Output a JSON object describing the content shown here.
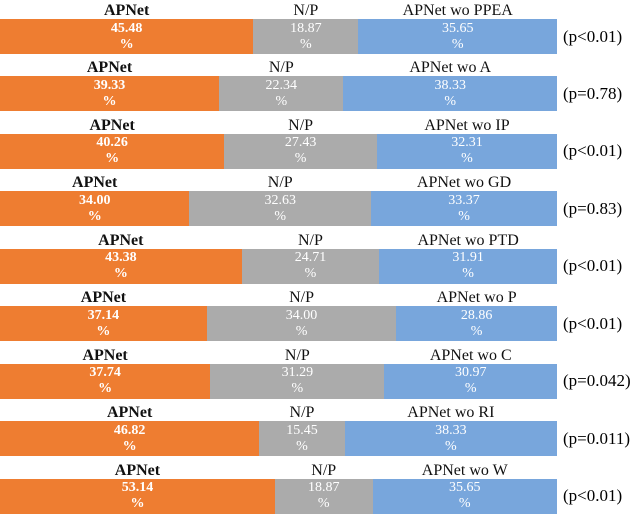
{
  "chart_data": {
    "type": "bar",
    "variant": "horizontal-stacked-preference-test",
    "unit": "%",
    "xlim": [
      0,
      100
    ],
    "grid": false,
    "colors": {
      "apnet": "#EE7D31",
      "np": "#ABABAB",
      "ablation": "#78A6DC"
    },
    "series_names": [
      "APNet",
      "N/P",
      "APNet ablation"
    ],
    "rows": [
      {
        "labels": [
          "APNet",
          "N/P",
          "APNet wo PPEA"
        ],
        "values": [
          45.48,
          18.87,
          35.65
        ],
        "display": [
          "45.48",
          "18.87",
          "35.65"
        ],
        "p": "(p<0.01)"
      },
      {
        "labels": [
          "APNet",
          "N/P",
          "APNet wo A"
        ],
        "values": [
          39.33,
          22.34,
          38.33
        ],
        "display": [
          "39.33",
          "22.34",
          "38.33"
        ],
        "p": "(p=0.78)"
      },
      {
        "labels": [
          "APNet",
          "N/P",
          "APNet wo IP"
        ],
        "values": [
          40.26,
          27.43,
          32.31
        ],
        "display": [
          "40.26",
          "27.43",
          "32.31"
        ],
        "p": "(p<0.01)"
      },
      {
        "labels": [
          "APNet",
          "N/P",
          "APNet wo GD"
        ],
        "values": [
          34.0,
          32.63,
          33.37
        ],
        "display": [
          "34.00",
          "32.63",
          "33.37"
        ],
        "p": "(p=0.83)"
      },
      {
        "labels": [
          "APNet",
          "N/P",
          "APNet wo PTD"
        ],
        "values": [
          43.38,
          24.71,
          31.91
        ],
        "display": [
          "43.38",
          "24.71",
          "31.91"
        ],
        "p": "(p<0.01)"
      },
      {
        "labels": [
          "APNet",
          "N/P",
          "APNet wo P"
        ],
        "values": [
          37.14,
          34.0,
          28.86
        ],
        "display": [
          "37.14",
          "34.00",
          "28.86"
        ],
        "p": "(p<0.01)"
      },
      {
        "labels": [
          "APNet",
          "N/P",
          "APNet wo C"
        ],
        "values": [
          37.74,
          31.29,
          30.97
        ],
        "display": [
          "37.74",
          "31.29",
          "30.97"
        ],
        "p": "(p=0.042)"
      },
      {
        "labels": [
          "APNet",
          "N/P",
          "APNet wo RI"
        ],
        "values": [
          46.82,
          15.45,
          38.33
        ],
        "display": [
          "46.82",
          "15.45",
          "38.33"
        ],
        "p": "(p=0.011)"
      },
      {
        "labels": [
          "APNet",
          "N/P",
          "APNet wo W"
        ],
        "values": [
          53.14,
          18.87,
          35.65
        ],
        "display": [
          "53.14",
          "18.87",
          "35.65"
        ],
        "p": "(p<0.01)"
      }
    ]
  }
}
